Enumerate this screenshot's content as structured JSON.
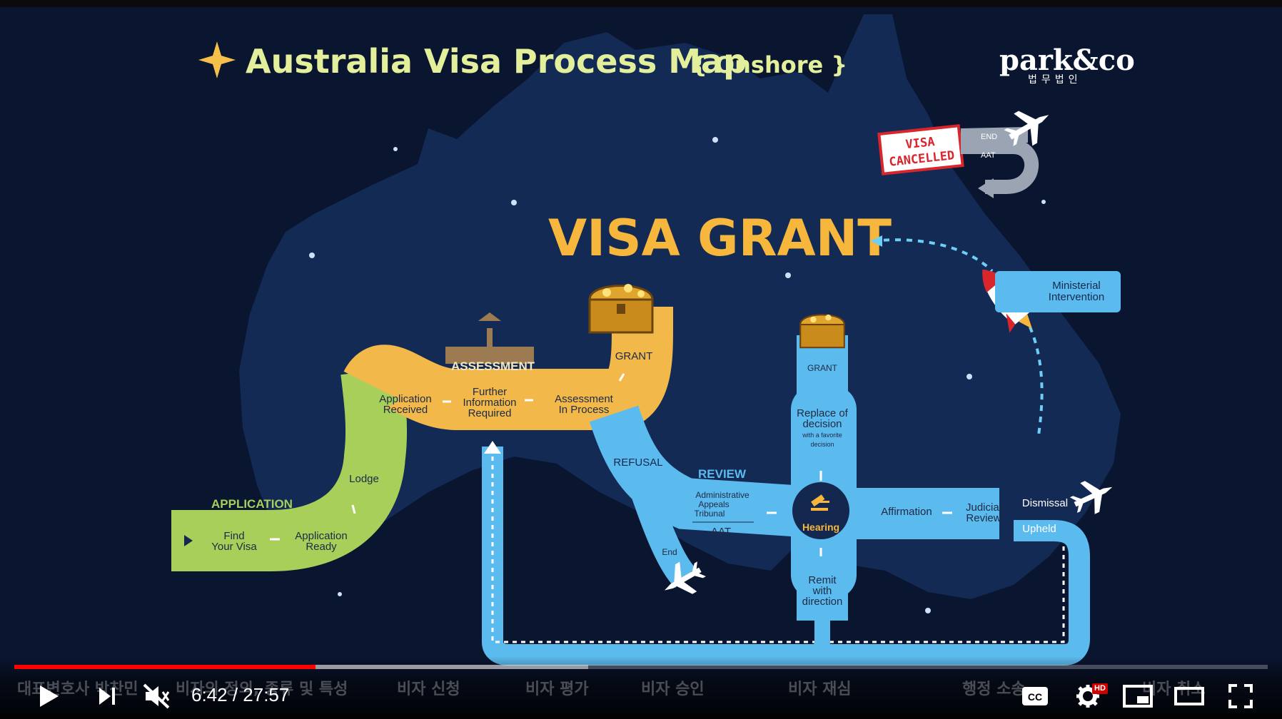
{
  "slide": {
    "title": "Australia Visa Process Map",
    "subtitle": "{ Onshore }",
    "logo": {
      "text": "park&co",
      "subtext": "법무법인"
    },
    "visa_grant": "VISA GRANT",
    "visa_cancelled_line1": "VISA",
    "visa_cancelled_line2": "CANCELLED",
    "cancel_end": "END",
    "cancel_aat": "AAT",
    "ministerial": [
      "Ministerial",
      "Intervention"
    ],
    "application_label": "APPLICATION",
    "assessment_label": "ASSESSMENT",
    "review_label": "REVIEW",
    "find_visa": [
      "Find",
      "Your Visa"
    ],
    "application_ready": [
      "Application",
      "Ready"
    ],
    "lodge": "Lodge",
    "application_received": [
      "Application",
      "Received"
    ],
    "further_info": [
      "Further",
      "Information",
      "Required"
    ],
    "assessment_in_process": [
      "Assessment",
      "In Process"
    ],
    "grant_main": "GRANT",
    "refusal": "REFUSAL",
    "end_left": "End",
    "aat_block": [
      "Administrative",
      "Appeals",
      "Tribunal"
    ],
    "aat": "AAT",
    "hearing": "Hearing",
    "affirmation": "Affirmation",
    "judicial_review": [
      "Judicial",
      "Review"
    ],
    "dismissal": "Dismissal",
    "upheld": "Upheld",
    "grant_review": "GRANT",
    "replace_decision": [
      "Replace of",
      "decision"
    ],
    "replace_note": [
      "with a favorite",
      "decision"
    ],
    "remit": [
      "Remit",
      "with",
      "direction"
    ]
  },
  "player": {
    "current_time": "6:42",
    "duration": "27:57",
    "time_display": "6:42 / 27:57",
    "progress_fraction": 0.2403,
    "buffered_fraction": 0.2175,
    "hd_badge": "HD",
    "cc_label": "CC",
    "chapters": [
      "대표변호사 박찬민",
      "비자의 정의, 종류 및 특성",
      "비자 신청",
      "비자 평가",
      "비자 승인",
      "비자 재심",
      "행정 소송",
      "비자 취소"
    ],
    "colors": {
      "progress": "#ff0000",
      "hd": "#cc0000"
    }
  },
  "colors": {
    "background": "#0a1530",
    "continent": "#132a55",
    "title": "#e4ef9c",
    "grant": "#f6b73c",
    "green_road": "#a7cf5a",
    "yellow_road": "#f2b94a",
    "blue_road": "#5cbbee",
    "hearing": "#14284f"
  }
}
